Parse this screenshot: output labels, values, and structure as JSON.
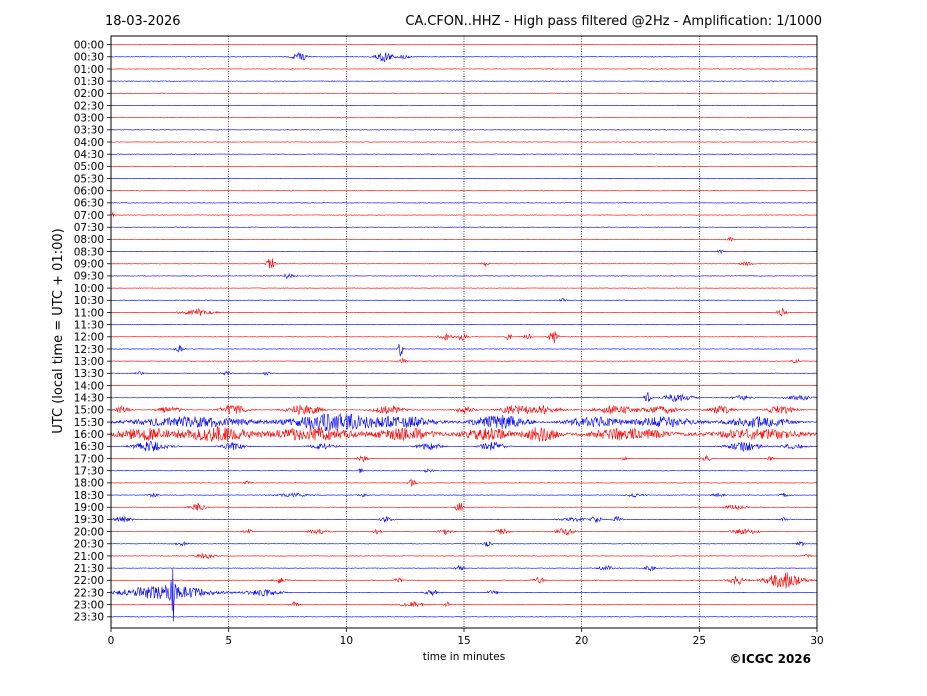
{
  "header": {
    "date": "18-03-2026",
    "title": "CA.CFON..HHZ - High pass filtered @2Hz - Amplification: 1/1000"
  },
  "copyright": "©ICGC 2026",
  "chart_data": {
    "type": "line",
    "title": "CA.CFON..HHZ - High pass filtered @2Hz - Amplification: 1/1000",
    "date": "18-03-2026",
    "xlabel": "time in minutes",
    "ylabel": "UTC (local time = UTC + 01:00)",
    "xlim": [
      0,
      30
    ],
    "xticks": [
      0,
      5,
      10,
      15,
      20,
      25,
      30
    ],
    "grid_x": [
      5,
      10,
      15,
      20,
      25
    ],
    "row_colors": [
      "#ff0000",
      "#0000ff"
    ],
    "rows": [
      {
        "label": "00:00",
        "activity": []
      },
      {
        "label": "00:30",
        "activity": [
          [
            8.0,
            0.6,
            0.5
          ],
          [
            11.6,
            0.8,
            0.6
          ],
          [
            12.5,
            0.5,
            0.2
          ]
        ]
      },
      {
        "label": "01:00",
        "activity": []
      },
      {
        "label": "01:30",
        "activity": []
      },
      {
        "label": "02:00",
        "activity": []
      },
      {
        "label": "02:30",
        "activity": []
      },
      {
        "label": "03:00",
        "activity": []
      },
      {
        "label": "03:30",
        "activity": []
      },
      {
        "label": "04:00",
        "activity": []
      },
      {
        "label": "04:30",
        "activity": []
      },
      {
        "label": "05:00",
        "activity": []
      },
      {
        "label": "05:30",
        "activity": []
      },
      {
        "label": "06:00",
        "activity": []
      },
      {
        "label": "06:30",
        "activity": []
      },
      {
        "label": "07:00",
        "activity": [
          [
            0.0,
            0.2,
            0.4
          ]
        ]
      },
      {
        "label": "07:30",
        "activity": []
      },
      {
        "label": "08:00",
        "activity": [
          [
            26.3,
            0.3,
            0.2
          ]
        ]
      },
      {
        "label": "08:30",
        "activity": [
          [
            25.9,
            0.2,
            0.2
          ]
        ]
      },
      {
        "label": "09:00",
        "activity": [
          [
            6.8,
            0.3,
            0.7
          ],
          [
            15.9,
            0.3,
            0.2
          ],
          [
            27.0,
            0.5,
            0.2
          ]
        ]
      },
      {
        "label": "09:30",
        "activity": [
          [
            7.5,
            0.4,
            0.3
          ]
        ]
      },
      {
        "label": "10:00",
        "activity": []
      },
      {
        "label": "10:30",
        "activity": [
          [
            19.2,
            0.2,
            0.2
          ]
        ]
      },
      {
        "label": "11:00",
        "activity": [
          [
            3.7,
            1.4,
            0.4
          ],
          [
            28.5,
            0.3,
            0.5
          ]
        ]
      },
      {
        "label": "11:30",
        "activity": []
      },
      {
        "label": "12:00",
        "activity": [
          [
            14.2,
            0.5,
            0.4
          ],
          [
            14.9,
            0.4,
            0.4
          ],
          [
            16.9,
            0.2,
            0.4
          ],
          [
            17.7,
            0.2,
            0.4
          ],
          [
            18.8,
            0.3,
            0.8
          ]
        ]
      },
      {
        "label": "12:30",
        "activity": [
          [
            2.9,
            0.3,
            0.4
          ],
          [
            12.3,
            0.1,
            1.0
          ]
        ]
      },
      {
        "label": "13:00",
        "activity": [
          [
            12.4,
            0.2,
            0.3
          ],
          [
            29.1,
            0.3,
            0.2
          ]
        ]
      },
      {
        "label": "13:30",
        "activity": [
          [
            1.2,
            0.3,
            0.2
          ],
          [
            4.9,
            0.3,
            0.2
          ],
          [
            6.6,
            0.3,
            0.2
          ]
        ]
      },
      {
        "label": "14:00",
        "activity": []
      },
      {
        "label": "14:30",
        "activity": [
          [
            22.8,
            0.2,
            0.6
          ],
          [
            24.1,
            1.2,
            0.5
          ],
          [
            26.8,
            0.8,
            0.3
          ],
          [
            29.2,
            1.2,
            0.3
          ]
        ]
      },
      {
        "label": "15:00",
        "activity": [
          [
            0.5,
            0.6,
            0.4
          ],
          [
            2.5,
            1.0,
            0.4
          ],
          [
            5.2,
            1.2,
            0.6
          ],
          [
            8.2,
            1.5,
            0.6
          ],
          [
            11.8,
            1.3,
            0.5
          ],
          [
            15.0,
            0.8,
            0.4
          ],
          [
            17.1,
            1.2,
            0.5
          ],
          [
            18.3,
            1.6,
            0.5
          ],
          [
            21.5,
            2.0,
            0.5
          ],
          [
            23.5,
            1.5,
            0.4
          ],
          [
            25.9,
            1.0,
            0.5
          ],
          [
            28.5,
            1.2,
            0.5
          ]
        ]
      },
      {
        "label": "15:30",
        "activity": [
          [
            3.5,
            6.0,
            0.6
          ],
          [
            9.5,
            4.0,
            1.0
          ],
          [
            12.5,
            3.0,
            0.6
          ],
          [
            16.5,
            2.5,
            0.8
          ],
          [
            20.5,
            2.5,
            0.6
          ],
          [
            23.5,
            3.0,
            0.6
          ],
          [
            27.5,
            3.0,
            0.6
          ]
        ]
      },
      {
        "label": "16:00",
        "activity": [
          [
            1.5,
            3.0,
            0.7
          ],
          [
            4.5,
            3.0,
            0.9
          ],
          [
            8.5,
            4.0,
            0.8
          ],
          [
            12.5,
            3.0,
            0.7
          ],
          [
            16.0,
            2.5,
            0.7
          ],
          [
            18.3,
            1.5,
            0.9
          ],
          [
            22.0,
            4.0,
            0.7
          ],
          [
            27.5,
            4.5,
            0.6
          ]
        ]
      },
      {
        "label": "16:30",
        "activity": [
          [
            1.7,
            1.5,
            0.6
          ],
          [
            5.2,
            1.0,
            0.4
          ],
          [
            9.0,
            1.0,
            0.4
          ],
          [
            13.5,
            1.0,
            0.4
          ],
          [
            16.2,
            1.0,
            0.5
          ],
          [
            26.9,
            1.5,
            0.5
          ],
          [
            29.0,
            1.0,
            0.3
          ]
        ]
      },
      {
        "label": "17:00",
        "activity": [
          [
            10.7,
            0.4,
            0.4
          ],
          [
            21.8,
            0.2,
            0.2
          ],
          [
            25.3,
            0.3,
            0.3
          ],
          [
            28.0,
            0.3,
            0.2
          ]
        ]
      },
      {
        "label": "17:30",
        "activity": [
          [
            10.6,
            0.1,
            0.3
          ],
          [
            13.5,
            0.3,
            0.2
          ]
        ]
      },
      {
        "label": "18:00",
        "activity": [
          [
            12.8,
            0.2,
            0.5
          ],
          [
            5.8,
            0.3,
            0.2
          ]
        ]
      },
      {
        "label": "18:30",
        "activity": [
          [
            1.8,
            0.4,
            0.2
          ],
          [
            7.7,
            1.5,
            0.2
          ],
          [
            10.7,
            0.3,
            0.2
          ],
          [
            22.3,
            0.8,
            0.2
          ],
          [
            25.8,
            0.5,
            0.2
          ],
          [
            28.6,
            0.3,
            0.2
          ]
        ]
      },
      {
        "label": "19:00",
        "activity": [
          [
            3.7,
            0.6,
            0.4
          ],
          [
            14.8,
            0.3,
            0.6
          ],
          [
            26.5,
            0.8,
            0.3
          ]
        ]
      },
      {
        "label": "19:30",
        "activity": [
          [
            0.5,
            0.8,
            0.3
          ],
          [
            11.7,
            0.5,
            0.3
          ],
          [
            19.6,
            1.0,
            0.3
          ],
          [
            20.6,
            0.4,
            0.4
          ],
          [
            21.5,
            0.4,
            0.3
          ],
          [
            28.6,
            0.4,
            0.2
          ]
        ]
      },
      {
        "label": "20:00",
        "activity": [
          [
            5.8,
            0.3,
            0.3
          ],
          [
            8.8,
            0.8,
            0.3
          ],
          [
            11.3,
            0.3,
            0.3
          ],
          [
            14.2,
            0.5,
            0.3
          ],
          [
            16.6,
            0.6,
            0.3
          ],
          [
            19.3,
            0.8,
            0.4
          ],
          [
            26.9,
            1.2,
            0.3
          ]
        ]
      },
      {
        "label": "20:30",
        "activity": [
          [
            3.0,
            0.5,
            0.2
          ],
          [
            16.0,
            0.3,
            0.3
          ],
          [
            29.3,
            0.2,
            0.3
          ]
        ]
      },
      {
        "label": "21:00",
        "activity": [
          [
            4.0,
            0.8,
            0.3
          ],
          [
            29.6,
            0.2,
            0.2
          ]
        ]
      },
      {
        "label": "21:30",
        "activity": [
          [
            14.8,
            0.3,
            0.3
          ],
          [
            21.0,
            0.6,
            0.3
          ],
          [
            22.9,
            0.4,
            0.3
          ]
        ]
      },
      {
        "label": "22:00",
        "activity": [
          [
            7.2,
            0.5,
            0.3
          ],
          [
            12.2,
            0.3,
            0.3
          ],
          [
            18.2,
            0.5,
            0.3
          ],
          [
            26.6,
            0.7,
            0.5
          ],
          [
            28.6,
            1.6,
            0.9
          ]
        ]
      },
      {
        "label": "22:30",
        "activity": [
          [
            2.3,
            4.2,
            0.8
          ],
          [
            2.64,
            0.05,
            3.0
          ],
          [
            6.5,
            1.5,
            0.4
          ],
          [
            13.6,
            0.6,
            0.3
          ],
          [
            16.2,
            0.4,
            0.3
          ]
        ]
      },
      {
        "label": "23:00",
        "activity": [
          [
            7.8,
            0.3,
            0.3
          ],
          [
            12.8,
            1.0,
            0.3
          ],
          [
            14.3,
            0.2,
            0.3
          ]
        ]
      },
      {
        "label": "23:30",
        "activity": []
      }
    ]
  }
}
